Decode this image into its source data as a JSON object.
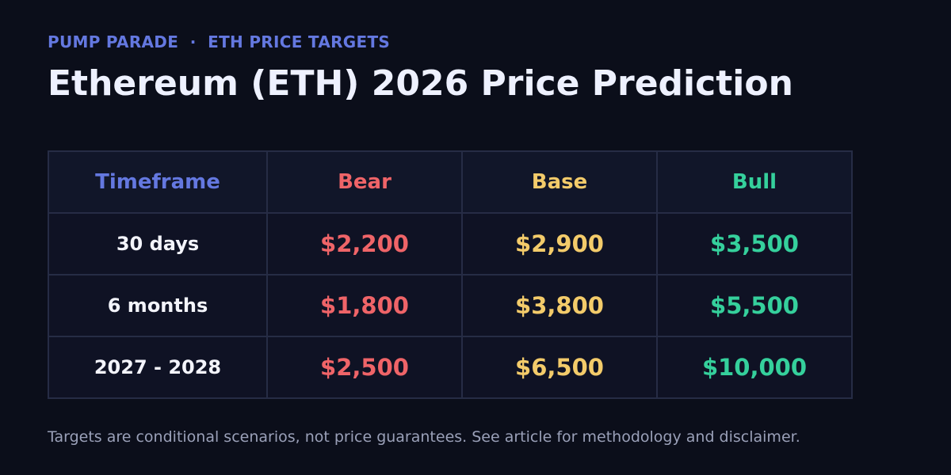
{
  "header": {
    "kicker": "PUMP PARADE  ·  ETH PRICE TARGETS",
    "title": "Ethereum (ETH) 2026 Price Prediction"
  },
  "table": {
    "headers": {
      "timeframe": "Timeframe",
      "bear": "Bear",
      "base": "Base",
      "bull": "Bull"
    },
    "rows": [
      {
        "timeframe": "30 days",
        "bear": "$2,200",
        "base": "$2,900",
        "bull": "$3,500"
      },
      {
        "timeframe": "6 months",
        "bear": "$1,800",
        "base": "$3,800",
        "bull": "$5,500"
      },
      {
        "timeframe": "2027 - 2028",
        "bear": "$2,500",
        "base": "$6,500",
        "bull": "$10,000"
      }
    ]
  },
  "footnote": "Targets are conditional scenarios, not price guarantees. See article for methodology and disclaimer.",
  "colors": {
    "background": "#0b0e1a",
    "accent": "#6478e0",
    "bear": "#ef6468",
    "base": "#f3cb6a",
    "bull": "#35d09c"
  }
}
